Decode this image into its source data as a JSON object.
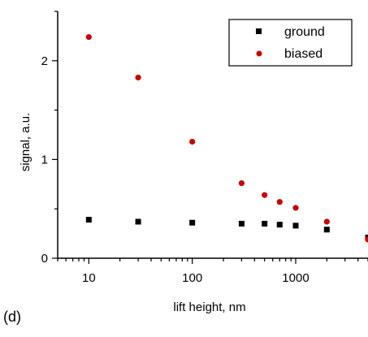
{
  "panel_label": "(d)",
  "chart_data": {
    "type": "scatter",
    "title": "",
    "xlabel": "lift height, nm",
    "ylabel": "signal, a.u.",
    "xscale": "log",
    "xlim": [
      5,
      5000
    ],
    "ylim": [
      0,
      2.5
    ],
    "x_ticks": [
      10,
      100,
      1000
    ],
    "x_tick_labels": [
      "10",
      "100",
      "1000"
    ],
    "y_ticks": [
      0,
      1,
      2
    ],
    "y_tick_labels": [
      "0",
      "1",
      "2"
    ],
    "grid": false,
    "legend_position": "top-right",
    "series": [
      {
        "name": "ground",
        "marker": "square",
        "color": "#000000",
        "points": [
          [
            10,
            0.39
          ],
          [
            30,
            0.37
          ],
          [
            100,
            0.36
          ],
          [
            300,
            0.35
          ],
          [
            500,
            0.35
          ],
          [
            700,
            0.34
          ],
          [
            1000,
            0.33
          ],
          [
            2000,
            0.29
          ],
          [
            5000,
            0.21
          ]
        ]
      },
      {
        "name": "biased",
        "marker": "circle",
        "color": "#cc0000",
        "points": [
          [
            10,
            2.24
          ],
          [
            30,
            1.83
          ],
          [
            100,
            1.18
          ],
          [
            300,
            0.76
          ],
          [
            500,
            0.64
          ],
          [
            700,
            0.57
          ],
          [
            1000,
            0.51
          ],
          [
            2000,
            0.37
          ],
          [
            5000,
            0.19
          ]
        ]
      }
    ]
  }
}
